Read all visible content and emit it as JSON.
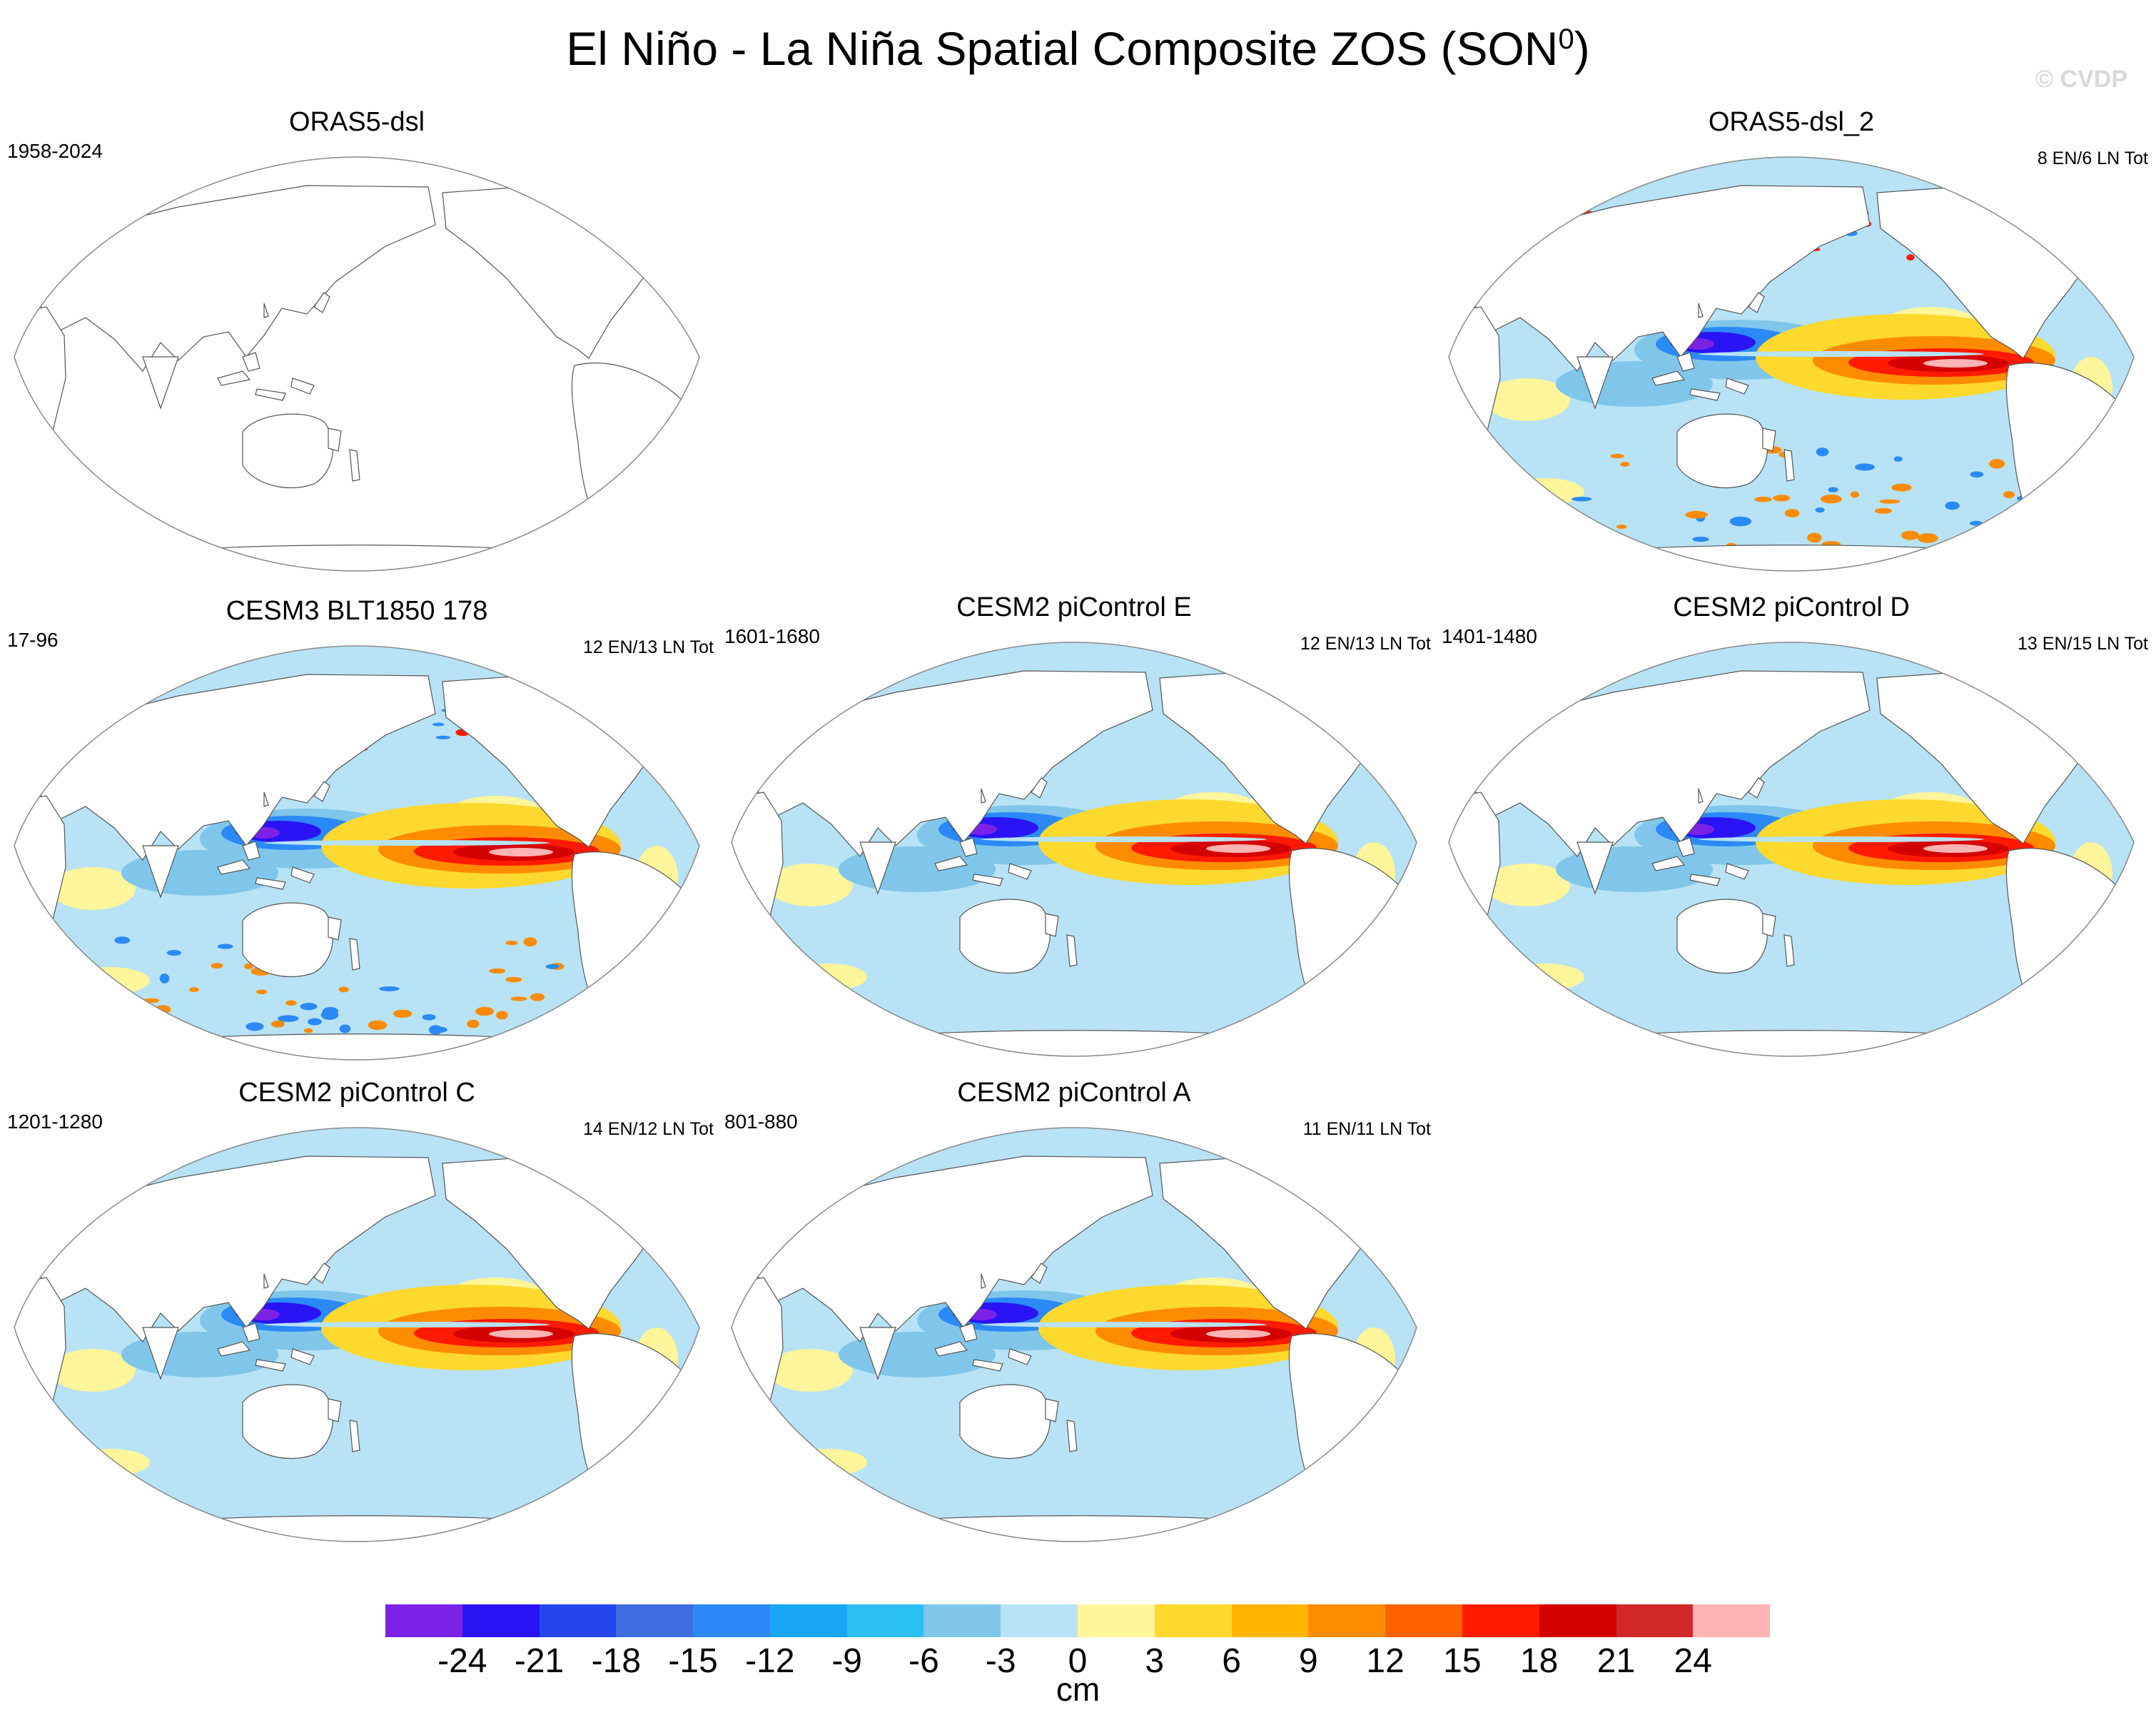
{
  "title": {
    "main": "El Niño - La Niña Spatial Composite ZOS (SON",
    "superscript": "0",
    "close": ")"
  },
  "watermark": "© CVDP",
  "colors": {
    "red_core": "#ff1a00",
    "red_dark": "#d40000",
    "pink": "#ffb3b3",
    "orange": "#ff8c00",
    "yellow": "#fff59a",
    "light_blue": "#b8e2f5",
    "blue": "#2b8af7",
    "dark_blue": "#2a14f5",
    "purple": "#7b22e6"
  },
  "panels": [
    {
      "id": "orasdsl",
      "title": "ORAS5-dsl",
      "years": "1958-2024",
      "count": "",
      "filled": false
    },
    {
      "id": "orasdsl2",
      "title": "ORAS5-dsl_2",
      "years": "",
      "count": "8 EN/6 LN Tot",
      "filled": true,
      "noisy": true
    },
    {
      "id": "cesm3",
      "title": "CESM3 BLT1850 178",
      "years": "17-96",
      "count": "12 EN/13 LN Tot",
      "filled": true,
      "noisy": true
    },
    {
      "id": "cesm2e",
      "title": "CESM2 piControl E",
      "years": "1601-1680",
      "count": "12 EN/13 LN Tot",
      "filled": true,
      "noisy": false
    },
    {
      "id": "cesm2d",
      "title": "CESM2 piControl D",
      "years": "1401-1480",
      "count": "13 EN/15 LN Tot",
      "filled": true,
      "noisy": false
    },
    {
      "id": "cesm2c",
      "title": "CESM2 piControl C",
      "years": "1201-1280",
      "count": "14 EN/12 LN Tot",
      "filled": true,
      "noisy": false
    },
    {
      "id": "cesm2a",
      "title": "CESM2 piControl A",
      "years": "801-880",
      "count": "11 EN/11 LN Tot",
      "filled": true,
      "noisy": false
    }
  ],
  "colorbar": {
    "unit": "cm",
    "ticks": [
      "-24",
      "-21",
      "-18",
      "-15",
      "-12",
      "-9",
      "-6",
      "-3",
      "0",
      "3",
      "6",
      "9",
      "12",
      "15",
      "18",
      "21",
      "24"
    ],
    "colors": [
      "#7b22e6",
      "#2a14f5",
      "#2545ee",
      "#3f6de0",
      "#2b8af7",
      "#19a6f5",
      "#2cc0f2",
      "#7fc6ea",
      "#b8e2f5",
      "#fff59a",
      "#ffd92e",
      "#ffb400",
      "#ff8c00",
      "#ff6000",
      "#ff1a00",
      "#d40000",
      "#d02828",
      "#ffb3b3"
    ]
  }
}
